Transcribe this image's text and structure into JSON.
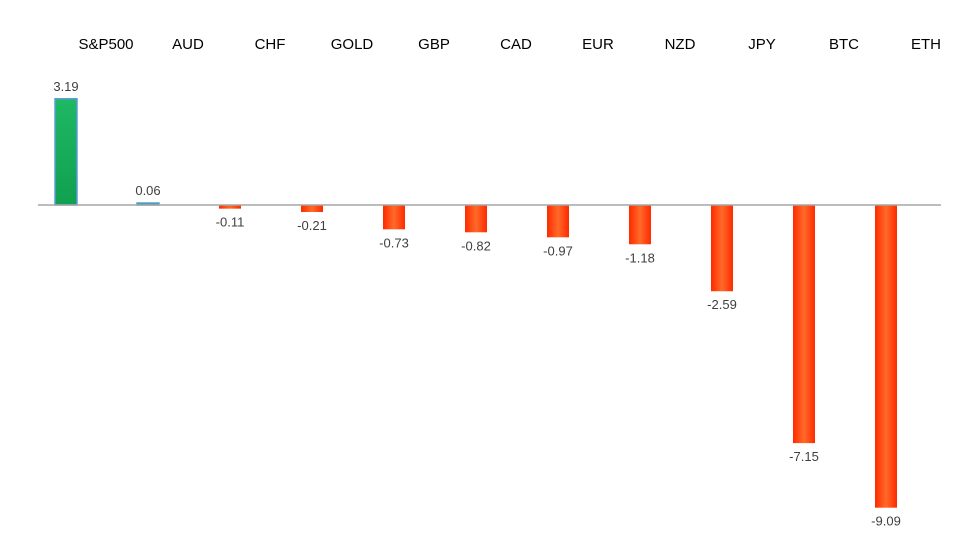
{
  "chart_data": {
    "type": "bar",
    "categories": [
      "S&P500",
      "AUD",
      "CHF",
      "GOLD",
      "GBP",
      "CAD",
      "EUR",
      "NZD",
      "JPY",
      "BTC",
      "ETH"
    ],
    "values": [
      3.19,
      0.06,
      -0.11,
      -0.21,
      -0.73,
      -0.82,
      -0.97,
      -1.18,
      -2.59,
      -7.15,
      -9.09
    ],
    "value_labels": [
      "3.19",
      "0.06",
      "-0.11",
      "-0.21",
      "-0.73",
      "-0.82",
      "-0.97",
      "-1.18",
      "-2.59",
      "-7.15",
      "-9.09"
    ],
    "title": "",
    "xlabel": "",
    "ylabel": "",
    "ylim": [
      -9.09,
      3.19
    ],
    "grid": false,
    "legend": "none",
    "category_labels_position": "top",
    "colors": {
      "positive_top": "#1fb864",
      "positive_bottom": "#10a050",
      "positive_edge": "#5b9bd5",
      "negative_top": "#ff2a00",
      "negative_bottom": "#ff6a2a",
      "baseline": "#a6a6a6"
    }
  }
}
